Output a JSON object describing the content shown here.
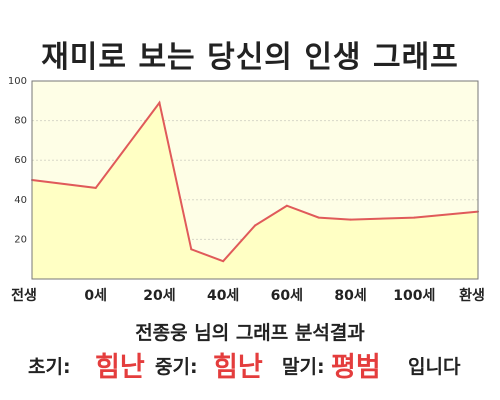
{
  "chart_data": {
    "type": "area",
    "title": "재미로 보는 당신의 인생 그래프",
    "categories": [
      "전생",
      "0세",
      "20세",
      "40세",
      "60세",
      "80세",
      "100세",
      "환생"
    ],
    "y_ticks": [
      20,
      40,
      60,
      80,
      100
    ],
    "ylim": [
      0,
      100
    ],
    "grid": true,
    "series": [
      {
        "points": [
          {
            "x": "전생",
            "y": 50
          },
          {
            "x": "0세",
            "y": 46
          },
          {
            "x": "20세",
            "y": 89
          },
          {
            "x": "30세",
            "y": 15
          },
          {
            "x": "40세",
            "y": 9
          },
          {
            "x": "50세",
            "y": 27
          },
          {
            "x": "60세",
            "y": 37
          },
          {
            "x": "70세",
            "y": 31
          },
          {
            "x": "80세",
            "y": 30
          },
          {
            "x": "100세",
            "y": 31
          },
          {
            "x": "환생",
            "y": 34
          }
        ]
      }
    ],
    "colors": {
      "line": "#e05a5a",
      "fill": "#ffffc4",
      "plot_bg": "#fefee6",
      "grid": "#d8d8c8"
    }
  },
  "result": {
    "text": "전종웅 님의 그래프 분석결과",
    "stages": [
      {
        "label": "초기:",
        "value": "힘난"
      },
      {
        "label": "중기:",
        "value": "힘난"
      },
      {
        "label": "말기:",
        "value": "평범"
      }
    ],
    "suffix": "입니다"
  }
}
